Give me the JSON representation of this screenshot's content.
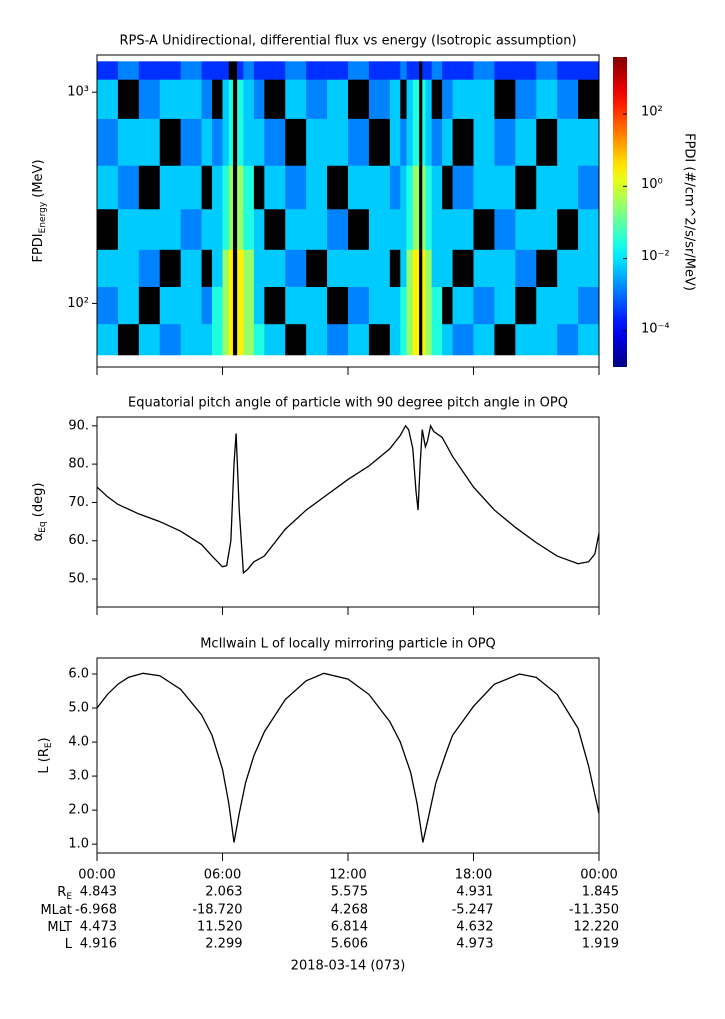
{
  "chart_data": [
    {
      "type": "heatmap",
      "title": "RPS-A Unidirectional, differential flux vs energy (Isotropic assumption)",
      "ylabel": [
        {
          "text": "FPDI"
        },
        {
          "text": "Energy",
          "sub": true
        },
        {
          "text": " (MeV)"
        }
      ],
      "x_edges": [
        0,
        1,
        2,
        3,
        4,
        5,
        5.5,
        6,
        6.3,
        6.5,
        6.7,
        7,
        7.5,
        8,
        9,
        10,
        11,
        12,
        13,
        14,
        14.5,
        14.8,
        15.1,
        15.4,
        15.55,
        15.7,
        16,
        16.5,
        17,
        18,
        19,
        20,
        21,
        22,
        23,
        24
      ],
      "y_edges": [
        57,
        80,
        120,
        180,
        280,
        450,
        750,
        1150,
        1400
      ],
      "z": [
        [
          0.006,
          null,
          0.006,
          0.0015,
          0.006,
          0.006,
          0.03,
          0.3,
          3,
          null,
          3,
          0.3,
          0.03,
          0.006,
          null,
          0.006,
          0.0015,
          0.006,
          null,
          0.006,
          0.03,
          0.3,
          3,
          null,
          3,
          0.3,
          0.03,
          0.006,
          0.0015,
          0.006,
          null,
          0.006,
          0.006,
          0.0015,
          0.006
        ],
        [
          0.0015,
          0.006,
          null,
          0.006,
          0.006,
          0.0015,
          0.03,
          0.3,
          3,
          null,
          3,
          0.3,
          0.006,
          null,
          0.006,
          0.006,
          null,
          0.0015,
          0.006,
          0.006,
          0.03,
          0.3,
          3,
          null,
          3,
          0.3,
          0.03,
          null,
          0.006,
          0.0015,
          0.006,
          null,
          0.006,
          0.006,
          0.0015
        ],
        [
          0.006,
          0.006,
          0.0015,
          null,
          0.006,
          null,
          0.006,
          0.3,
          3,
          null,
          3,
          0.3,
          0.006,
          0.006,
          0.0015,
          null,
          0.006,
          0.006,
          0.006,
          null,
          0.006,
          0.3,
          3,
          null,
          3,
          0.3,
          0.006,
          0.006,
          null,
          0.006,
          0.006,
          0.0015,
          null,
          0.006,
          0.006
        ],
        [
          null,
          0.006,
          0.006,
          0.006,
          0.0015,
          0.006,
          0.006,
          0.03,
          0.3,
          null,
          0.3,
          0.03,
          0.006,
          null,
          0.006,
          0.006,
          0.0015,
          null,
          0.006,
          0.006,
          0.006,
          0.03,
          0.3,
          null,
          0.3,
          0.03,
          0.006,
          0.006,
          0.006,
          null,
          0.0015,
          0.006,
          0.006,
          null,
          0.006
        ],
        [
          0.006,
          0.0015,
          null,
          0.006,
          0.006,
          null,
          0.006,
          0.03,
          0.3,
          null,
          0.3,
          0.03,
          null,
          0.006,
          0.0015,
          0.006,
          null,
          0.006,
          0.006,
          0.0015,
          0.006,
          0.03,
          0.3,
          null,
          0.3,
          0.03,
          0.006,
          null,
          0.0015,
          0.006,
          0.006,
          null,
          0.006,
          0.006,
          0.0015
        ],
        [
          0.0015,
          0.006,
          0.006,
          null,
          0.0015,
          0.006,
          0.0015,
          0.006,
          0.03,
          null,
          0.03,
          0.006,
          0.006,
          0.0015,
          null,
          0.006,
          0.006,
          0.0015,
          null,
          0.006,
          0.0015,
          0.006,
          0.03,
          null,
          0.03,
          0.006,
          0.0015,
          0.006,
          null,
          0.006,
          0.0015,
          0.006,
          null,
          0.006,
          0.006
        ],
        [
          0.006,
          null,
          0.0015,
          0.006,
          0.006,
          0.0015,
          null,
          0.006,
          0.03,
          null,
          0.03,
          0.006,
          0.0015,
          null,
          0.006,
          0.0015,
          0.006,
          null,
          0.0015,
          0.006,
          null,
          0.006,
          0.03,
          null,
          0.03,
          0.006,
          null,
          0.0015,
          0.006,
          0.006,
          null,
          0.0015,
          0.006,
          0.0015,
          null
        ],
        [
          0.0003,
          0.0015,
          0.0003,
          0.0003,
          0.0015,
          0.0003,
          0.0003,
          0.0003,
          null,
          null,
          0.0003,
          0.0015,
          0.0003,
          0.0003,
          0.0015,
          0.0003,
          0.0003,
          0.0015,
          0.0003,
          0.0003,
          0.0015,
          0.0003,
          0.0003,
          null,
          0.0003,
          0.0003,
          0.0015,
          0.0003,
          0.0003,
          0.0015,
          0.0003,
          0.0003,
          0.0015,
          0.0003,
          0.0003
        ]
      ],
      "xlim": [
        0,
        24
      ],
      "xticks": [
        0,
        6,
        12,
        18,
        24
      ],
      "ylim": [
        50,
        1500
      ],
      "ylog": true,
      "yticks": [
        {
          "value": 100,
          "label": "10²"
        },
        {
          "value": 1000,
          "label": "10³"
        }
      ],
      "colorbar": {
        "label": "FPDI (#/cm^2/s/sr/MeV)",
        "colormap": "jet",
        "log": true,
        "lim": [
          1e-05,
          3800
        ],
        "ticks": [
          {
            "value": 100,
            "label": "10²"
          },
          {
            "value": 1,
            "label": "10⁰"
          },
          {
            "value": 0.01,
            "label": "10⁻²"
          },
          {
            "value": 0.0001,
            "label": "10⁻⁴"
          }
        ]
      }
    },
    {
      "type": "line",
      "title": "Equatorial pitch angle of particle with 90 degree pitch angle in OPQ",
      "ylabel": [
        {
          "text": "α"
        },
        {
          "text": "Eq",
          "sub": true
        },
        {
          "text": " (deg)"
        }
      ],
      "x": [
        0,
        0.5,
        1,
        2,
        3,
        4,
        5,
        5.5,
        6,
        6.2,
        6.4,
        6.55,
        6.65,
        6.8,
        7.0,
        7.2,
        7.5,
        8,
        9,
        10,
        11,
        12,
        13,
        14,
        14.5,
        14.75,
        14.9,
        15.1,
        15.25,
        15.35,
        15.45,
        15.55,
        15.7,
        15.8,
        15.95,
        16.1,
        16.5,
        17,
        18,
        19,
        20,
        21,
        22,
        23,
        23.5,
        23.8,
        24
      ],
      "values": [
        74,
        71.5,
        69.5,
        67,
        65,
        62.5,
        59,
        56,
        53.2,
        53.5,
        60,
        80,
        88,
        68,
        51.6,
        52.5,
        54.5,
        56,
        63,
        68,
        72,
        76,
        79.5,
        84,
        87.5,
        90,
        89,
        84,
        73,
        68,
        80,
        89,
        84.5,
        86,
        90,
        88.5,
        87,
        82,
        74,
        68,
        63.5,
        59.5,
        56,
        54,
        54.5,
        56.5,
        62
      ],
      "color": "#000000",
      "xlim": [
        0,
        24
      ],
      "xticks": [
        0,
        6,
        12,
        18,
        24
      ],
      "ylim": [
        42.7,
        92.3
      ],
      "yticks": [
        {
          "value": 50,
          "label": "50."
        },
        {
          "value": 60,
          "label": "60."
        },
        {
          "value": 70,
          "label": "70."
        },
        {
          "value": 80,
          "label": "80."
        },
        {
          "value": 90,
          "label": "90."
        }
      ]
    },
    {
      "type": "line",
      "title": "McIlwain L of locally mirroring particle in OPQ",
      "ylabel": [
        {
          "text": "L (R"
        },
        {
          "text": "E",
          "sub": true
        },
        {
          "text": ")"
        }
      ],
      "x": [
        0,
        0.5,
        1,
        1.5,
        2.2,
        3,
        4,
        5,
        5.5,
        6,
        6.3,
        6.55,
        6.8,
        7.1,
        7.5,
        8,
        9,
        10,
        10.85,
        12,
        13,
        14,
        14.5,
        15,
        15.3,
        15.58,
        15.85,
        16.2,
        16.7,
        17,
        18,
        19,
        20.2,
        21,
        22,
        23,
        23.5,
        24
      ],
      "values": [
        5.0,
        5.4,
        5.7,
        5.9,
        6.02,
        5.95,
        5.55,
        4.8,
        4.2,
        3.2,
        2.2,
        1.05,
        1.9,
        2.8,
        3.6,
        4.3,
        5.25,
        5.8,
        6.02,
        5.85,
        5.4,
        4.6,
        4.0,
        3.1,
        2.2,
        1.05,
        1.8,
        2.8,
        3.7,
        4.2,
        5.05,
        5.7,
        6.0,
        5.9,
        5.4,
        4.4,
        3.3,
        1.9
      ],
      "color": "#000000",
      "xlim": [
        0,
        24
      ],
      "xticks": [
        {
          "value": 0,
          "label": "00:00"
        },
        {
          "value": 6,
          "label": "06:00"
        },
        {
          "value": 12,
          "label": "12:00"
        },
        {
          "value": 18,
          "label": "18:00"
        },
        {
          "value": 24,
          "label": "00:00"
        }
      ],
      "ylim": [
        0.74,
        6.47
      ],
      "yticks": [
        {
          "value": 1,
          "label": "1.0"
        },
        {
          "value": 2,
          "label": "2.0"
        },
        {
          "value": 3,
          "label": "3.0"
        },
        {
          "value": 4,
          "label": "4.0"
        },
        {
          "value": 5,
          "label": "5.0"
        },
        {
          "value": 6,
          "label": "6.0"
        }
      ]
    }
  ],
  "ephemeris": {
    "rows": [
      {
        "label": [
          {
            "text": "R"
          },
          {
            "text": "E",
            "sub": true
          }
        ],
        "values": [
          "4.843",
          "2.063",
          "5.575",
          "4.931",
          "1.845"
        ]
      },
      {
        "label": [
          {
            "text": "MLat"
          }
        ],
        "values": [
          "-6.968",
          "-18.720",
          "4.268",
          "-5.247",
          "-11.350"
        ]
      },
      {
        "label": [
          {
            "text": "MLT"
          }
        ],
        "values": [
          "4.473",
          "11.520",
          "6.814",
          "4.632",
          "12.220"
        ]
      },
      {
        "label": [
          {
            "text": "L"
          }
        ],
        "values": [
          "4.916",
          "2.299",
          "5.606",
          "4.973",
          "1.919"
        ]
      }
    ],
    "date": "2018-03-14 (073)"
  }
}
